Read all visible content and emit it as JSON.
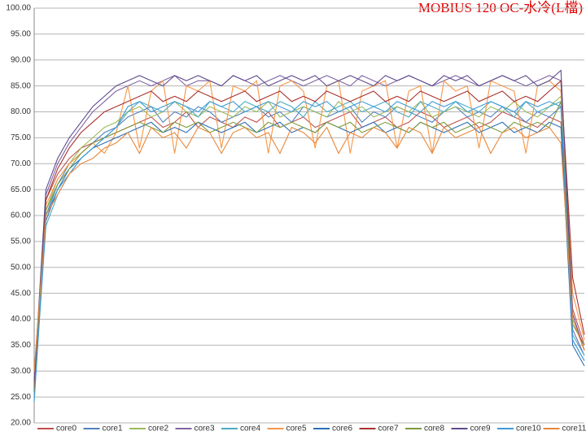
{
  "chart_data": {
    "type": "line",
    "title": "MOBIUS 120 OC-水冷(L檔)",
    "ylim": [
      20,
      100
    ],
    "yticks": [
      {
        "value": 20,
        "label": "20.00"
      },
      {
        "value": 25,
        "label": "25.00"
      },
      {
        "value": 30,
        "label": "30.00"
      },
      {
        "value": 35,
        "label": "35.00"
      },
      {
        "value": 40,
        "label": "40.00"
      },
      {
        "value": 45,
        "label": "45.00"
      },
      {
        "value": 50,
        "label": "50.00"
      },
      {
        "value": 55,
        "label": "55.00"
      },
      {
        "value": 60,
        "label": "60.00"
      },
      {
        "value": 65,
        "label": "65.00"
      },
      {
        "value": 70,
        "label": "70.00"
      },
      {
        "value": 75,
        "label": "75.00"
      },
      {
        "value": 80,
        "label": "80.00"
      },
      {
        "value": 85,
        "label": "85.00"
      },
      {
        "value": 90,
        "label": "90.00"
      },
      {
        "value": 95,
        "label": "95.00"
      },
      {
        "value": 100,
        "label": "100.00"
      }
    ],
    "grid": true,
    "legend": "bottom",
    "series": [
      {
        "name": "core0",
        "color": "#C0504D",
        "values": [
          25,
          63,
          68,
          71,
          73,
          74,
          75,
          76,
          77,
          78,
          79,
          77,
          78,
          80,
          77,
          79,
          78,
          77,
          79,
          78,
          80,
          77,
          78,
          79,
          77,
          78,
          79,
          80,
          77,
          78,
          79,
          77,
          78,
          80,
          79,
          77,
          78,
          79,
          77,
          78,
          80,
          79,
          78,
          77,
          79,
          78,
          42,
          35
        ]
      },
      {
        "name": "core1",
        "color": "#4F81BD",
        "values": [
          27,
          60,
          66,
          70,
          72,
          74,
          76,
          77,
          79,
          80,
          81,
          78,
          80,
          79,
          81,
          80,
          78,
          79,
          80,
          81,
          79,
          80,
          78,
          81,
          80,
          79,
          80,
          81,
          78,
          80,
          79,
          81,
          80,
          79,
          78,
          80,
          81,
          79,
          80,
          79,
          81,
          80,
          78,
          80,
          79,
          81,
          36,
          32
        ]
      },
      {
        "name": "core2",
        "color": "#9BBB59",
        "values": [
          28,
          61,
          67,
          70,
          73,
          75,
          77,
          78,
          80,
          81,
          79,
          80,
          82,
          80,
          79,
          81,
          80,
          79,
          81,
          80,
          82,
          79,
          80,
          81,
          80,
          79,
          82,
          80,
          81,
          79,
          80,
          81,
          80,
          82,
          79,
          80,
          81,
          80,
          79,
          81,
          80,
          82,
          80,
          79,
          81,
          83,
          40,
          34
        ]
      },
      {
        "name": "core3",
        "color": "#8064A2",
        "values": [
          26,
          64,
          70,
          74,
          77,
          80,
          82,
          84,
          85,
          86,
          85,
          86,
          87,
          85,
          86,
          86,
          85,
          87,
          86,
          85,
          86,
          87,
          86,
          85,
          86,
          87,
          86,
          85,
          87,
          86,
          85,
          86,
          87,
          86,
          85,
          86,
          87,
          86,
          85,
          86,
          87,
          86,
          85,
          86,
          87,
          86,
          38,
          33
        ]
      },
      {
        "name": "core4",
        "color": "#4BACC6",
        "values": [
          25,
          58,
          64,
          68,
          71,
          73,
          75,
          77,
          80,
          82,
          81,
          80,
          82,
          81,
          79,
          82,
          81,
          80,
          82,
          81,
          80,
          82,
          81,
          79,
          82,
          80,
          81,
          82,
          80,
          81,
          82,
          80,
          79,
          82,
          81,
          80,
          82,
          81,
          80,
          82,
          81,
          79,
          82,
          80,
          81,
          82,
          37,
          33
        ]
      },
      {
        "name": "core5",
        "color": "#F79646",
        "values": [
          29,
          62,
          67,
          70,
          72,
          74,
          72,
          76,
          85,
          73,
          84,
          86,
          72,
          85,
          84,
          86,
          73,
          85,
          84,
          86,
          72,
          85,
          86,
          84,
          73,
          85,
          86,
          72,
          84,
          85,
          86,
          73,
          84,
          85,
          72,
          86,
          84,
          85,
          73,
          86,
          85,
          84,
          72,
          85,
          86,
          84,
          45,
          36
        ]
      },
      {
        "name": "core6",
        "color": "#2C6FB5",
        "values": [
          27,
          59,
          65,
          69,
          71,
          73,
          74,
          75,
          76,
          77,
          78,
          76,
          77,
          76,
          78,
          77,
          76,
          77,
          78,
          76,
          77,
          78,
          76,
          77,
          76,
          78,
          77,
          76,
          77,
          78,
          76,
          77,
          76,
          78,
          77,
          76,
          77,
          78,
          76,
          77,
          78,
          76,
          77,
          76,
          78,
          77,
          35,
          31
        ]
      },
      {
        "name": "core7",
        "color": "#A8322E",
        "values": [
          26,
          63,
          69,
          73,
          76,
          78,
          80,
          81,
          82,
          83,
          84,
          82,
          83,
          82,
          84,
          83,
          82,
          83,
          84,
          82,
          83,
          84,
          82,
          83,
          82,
          84,
          83,
          82,
          83,
          84,
          82,
          83,
          82,
          84,
          83,
          82,
          83,
          84,
          82,
          83,
          84,
          82,
          83,
          82,
          84,
          86,
          48,
          37
        ]
      },
      {
        "name": "core8",
        "color": "#7E9A3A",
        "values": [
          25,
          61,
          66,
          69,
          72,
          74,
          75,
          76,
          77,
          78,
          77,
          76,
          78,
          77,
          78,
          76,
          77,
          78,
          77,
          76,
          78,
          77,
          78,
          77,
          76,
          78,
          77,
          78,
          76,
          77,
          78,
          77,
          76,
          78,
          77,
          78,
          76,
          77,
          78,
          77,
          76,
          78,
          77,
          78,
          77,
          82,
          39,
          35
        ]
      },
      {
        "name": "core9",
        "color": "#5E4A8C",
        "values": [
          28,
          65,
          71,
          75,
          78,
          81,
          83,
          85,
          86,
          87,
          86,
          85,
          87,
          86,
          87,
          86,
          85,
          87,
          86,
          87,
          85,
          86,
          87,
          86,
          87,
          85,
          86,
          87,
          86,
          85,
          87,
          86,
          87,
          86,
          85,
          87,
          86,
          87,
          85,
          86,
          87,
          86,
          87,
          85,
          86,
          88,
          41,
          34
        ]
      },
      {
        "name": "core10",
        "color": "#3E9BD6",
        "values": [
          24,
          60,
          65,
          68,
          71,
          73,
          75,
          77,
          81,
          82,
          80,
          81,
          82,
          81,
          80,
          82,
          81,
          82,
          80,
          81,
          82,
          81,
          80,
          82,
          81,
          82,
          80,
          81,
          82,
          81,
          80,
          82,
          81,
          80,
          82,
          81,
          82,
          80,
          81,
          82,
          81,
          80,
          82,
          81,
          82,
          81,
          36,
          32
        ]
      },
      {
        "name": "core11",
        "color": "#E8873A",
        "values": [
          30,
          60,
          64,
          68,
          70,
          71,
          73,
          74,
          76,
          72,
          77,
          75,
          76,
          73,
          77,
          76,
          72,
          76,
          77,
          75,
          76,
          72,
          77,
          76,
          74,
          77,
          72,
          76,
          75,
          77,
          76,
          73,
          77,
          76,
          72,
          77,
          75,
          76,
          77,
          72,
          76,
          77,
          75,
          76,
          77,
          74,
          40,
          34
        ]
      }
    ]
  }
}
